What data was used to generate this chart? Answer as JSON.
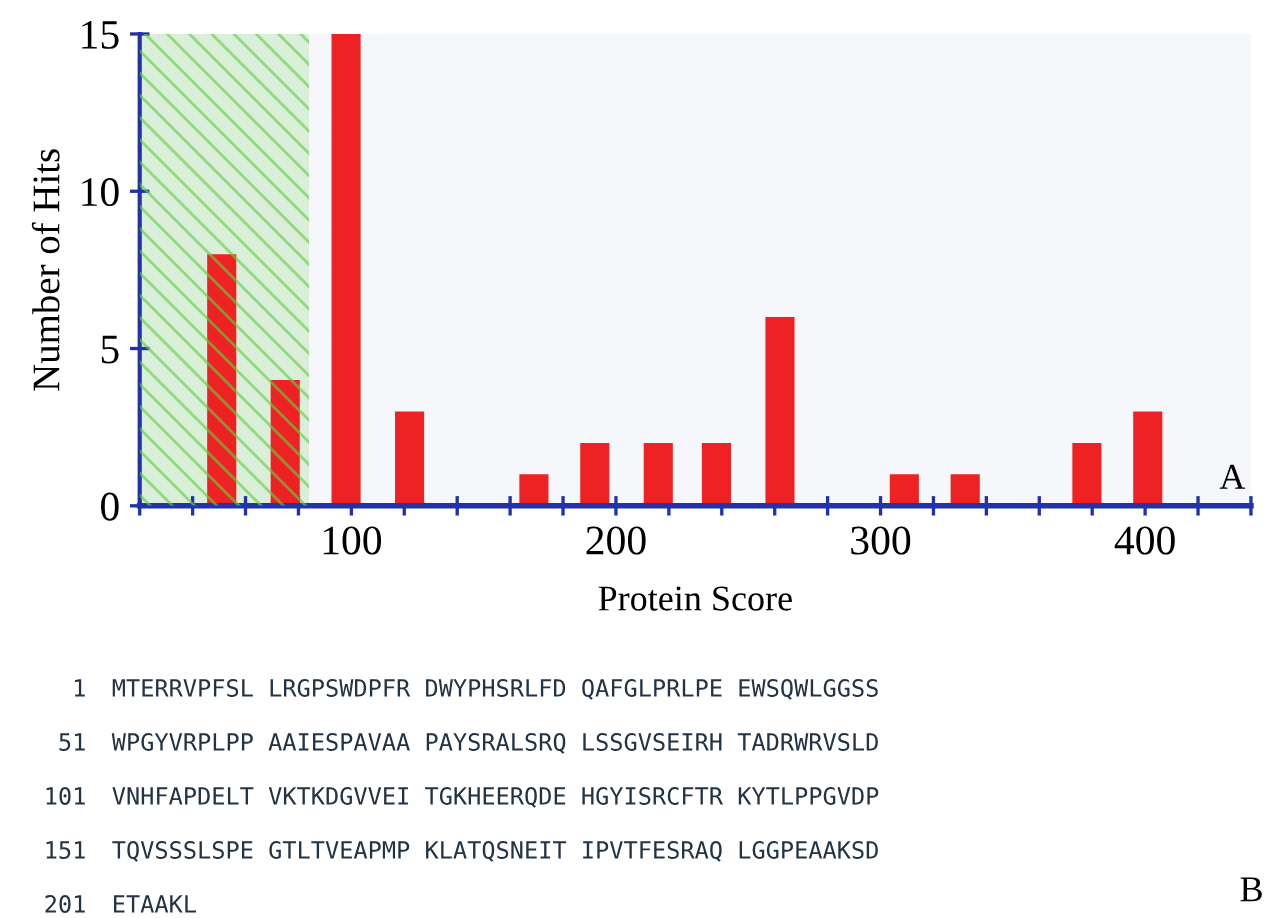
{
  "chart_data": {
    "type": "bar",
    "xlabel": "Protein Score",
    "ylabel": "Number of Hits",
    "x": [
      51,
      75,
      98,
      122,
      169,
      192,
      216,
      238,
      262,
      309,
      332,
      378,
      401
    ],
    "values": [
      8,
      4,
      15,
      3,
      1,
      2,
      2,
      2,
      6,
      1,
      1,
      2,
      3
    ],
    "color": "#ee2222",
    "xlim": [
      20,
      440
    ],
    "ylim": [
      0,
      15
    ],
    "xticks": [
      {
        "value": 20,
        "label": null
      },
      {
        "value": 40,
        "label": null
      },
      {
        "value": 60,
        "label": null
      },
      {
        "value": 80,
        "label": null
      },
      100,
      {
        "value": 120,
        "label": null
      },
      {
        "value": 140,
        "label": null
      },
      {
        "value": 160,
        "label": null
      },
      {
        "value": 180,
        "label": null
      },
      200,
      {
        "value": 220,
        "label": null
      },
      {
        "value": 240,
        "label": null
      },
      {
        "value": 260,
        "label": null
      },
      {
        "value": 280,
        "label": null
      },
      300,
      {
        "value": 320,
        "label": null
      },
      {
        "value": 340,
        "label": null
      },
      {
        "value": 360,
        "label": null
      },
      {
        "value": 380,
        "label": null
      },
      400,
      {
        "value": 420,
        "label": null
      },
      {
        "value": 440,
        "label": null
      }
    ],
    "yticks": [
      0,
      5,
      10,
      15
    ],
    "bands": [
      {
        "axis": "x",
        "from": 20,
        "to": 84,
        "color": "#66cc44"
      }
    ],
    "grid": false,
    "legend": false,
    "annotations": [
      "A",
      "B",
      "1 MTERRVPFSL LRGPSWDPFR DWYPHSRLFD QAFGLPRLPE EWSQWLGGSS",
      "51 WPGYVRPLPP AAIESPAVAA PAYSRALSRQ LSSGVSEIRH TADRWRVSLD",
      "101 VNHFAPDELT VKTKDGVVEI TGKHEERQDE HGYISRCFTR KYTLPPGVDP",
      "151 TQVSSSLSPE GTLTVEAPMP KLATQSNEIT IPVTFESRAQ LGGPEAAKSD",
      "201 ETAAKL"
    ]
  }
}
